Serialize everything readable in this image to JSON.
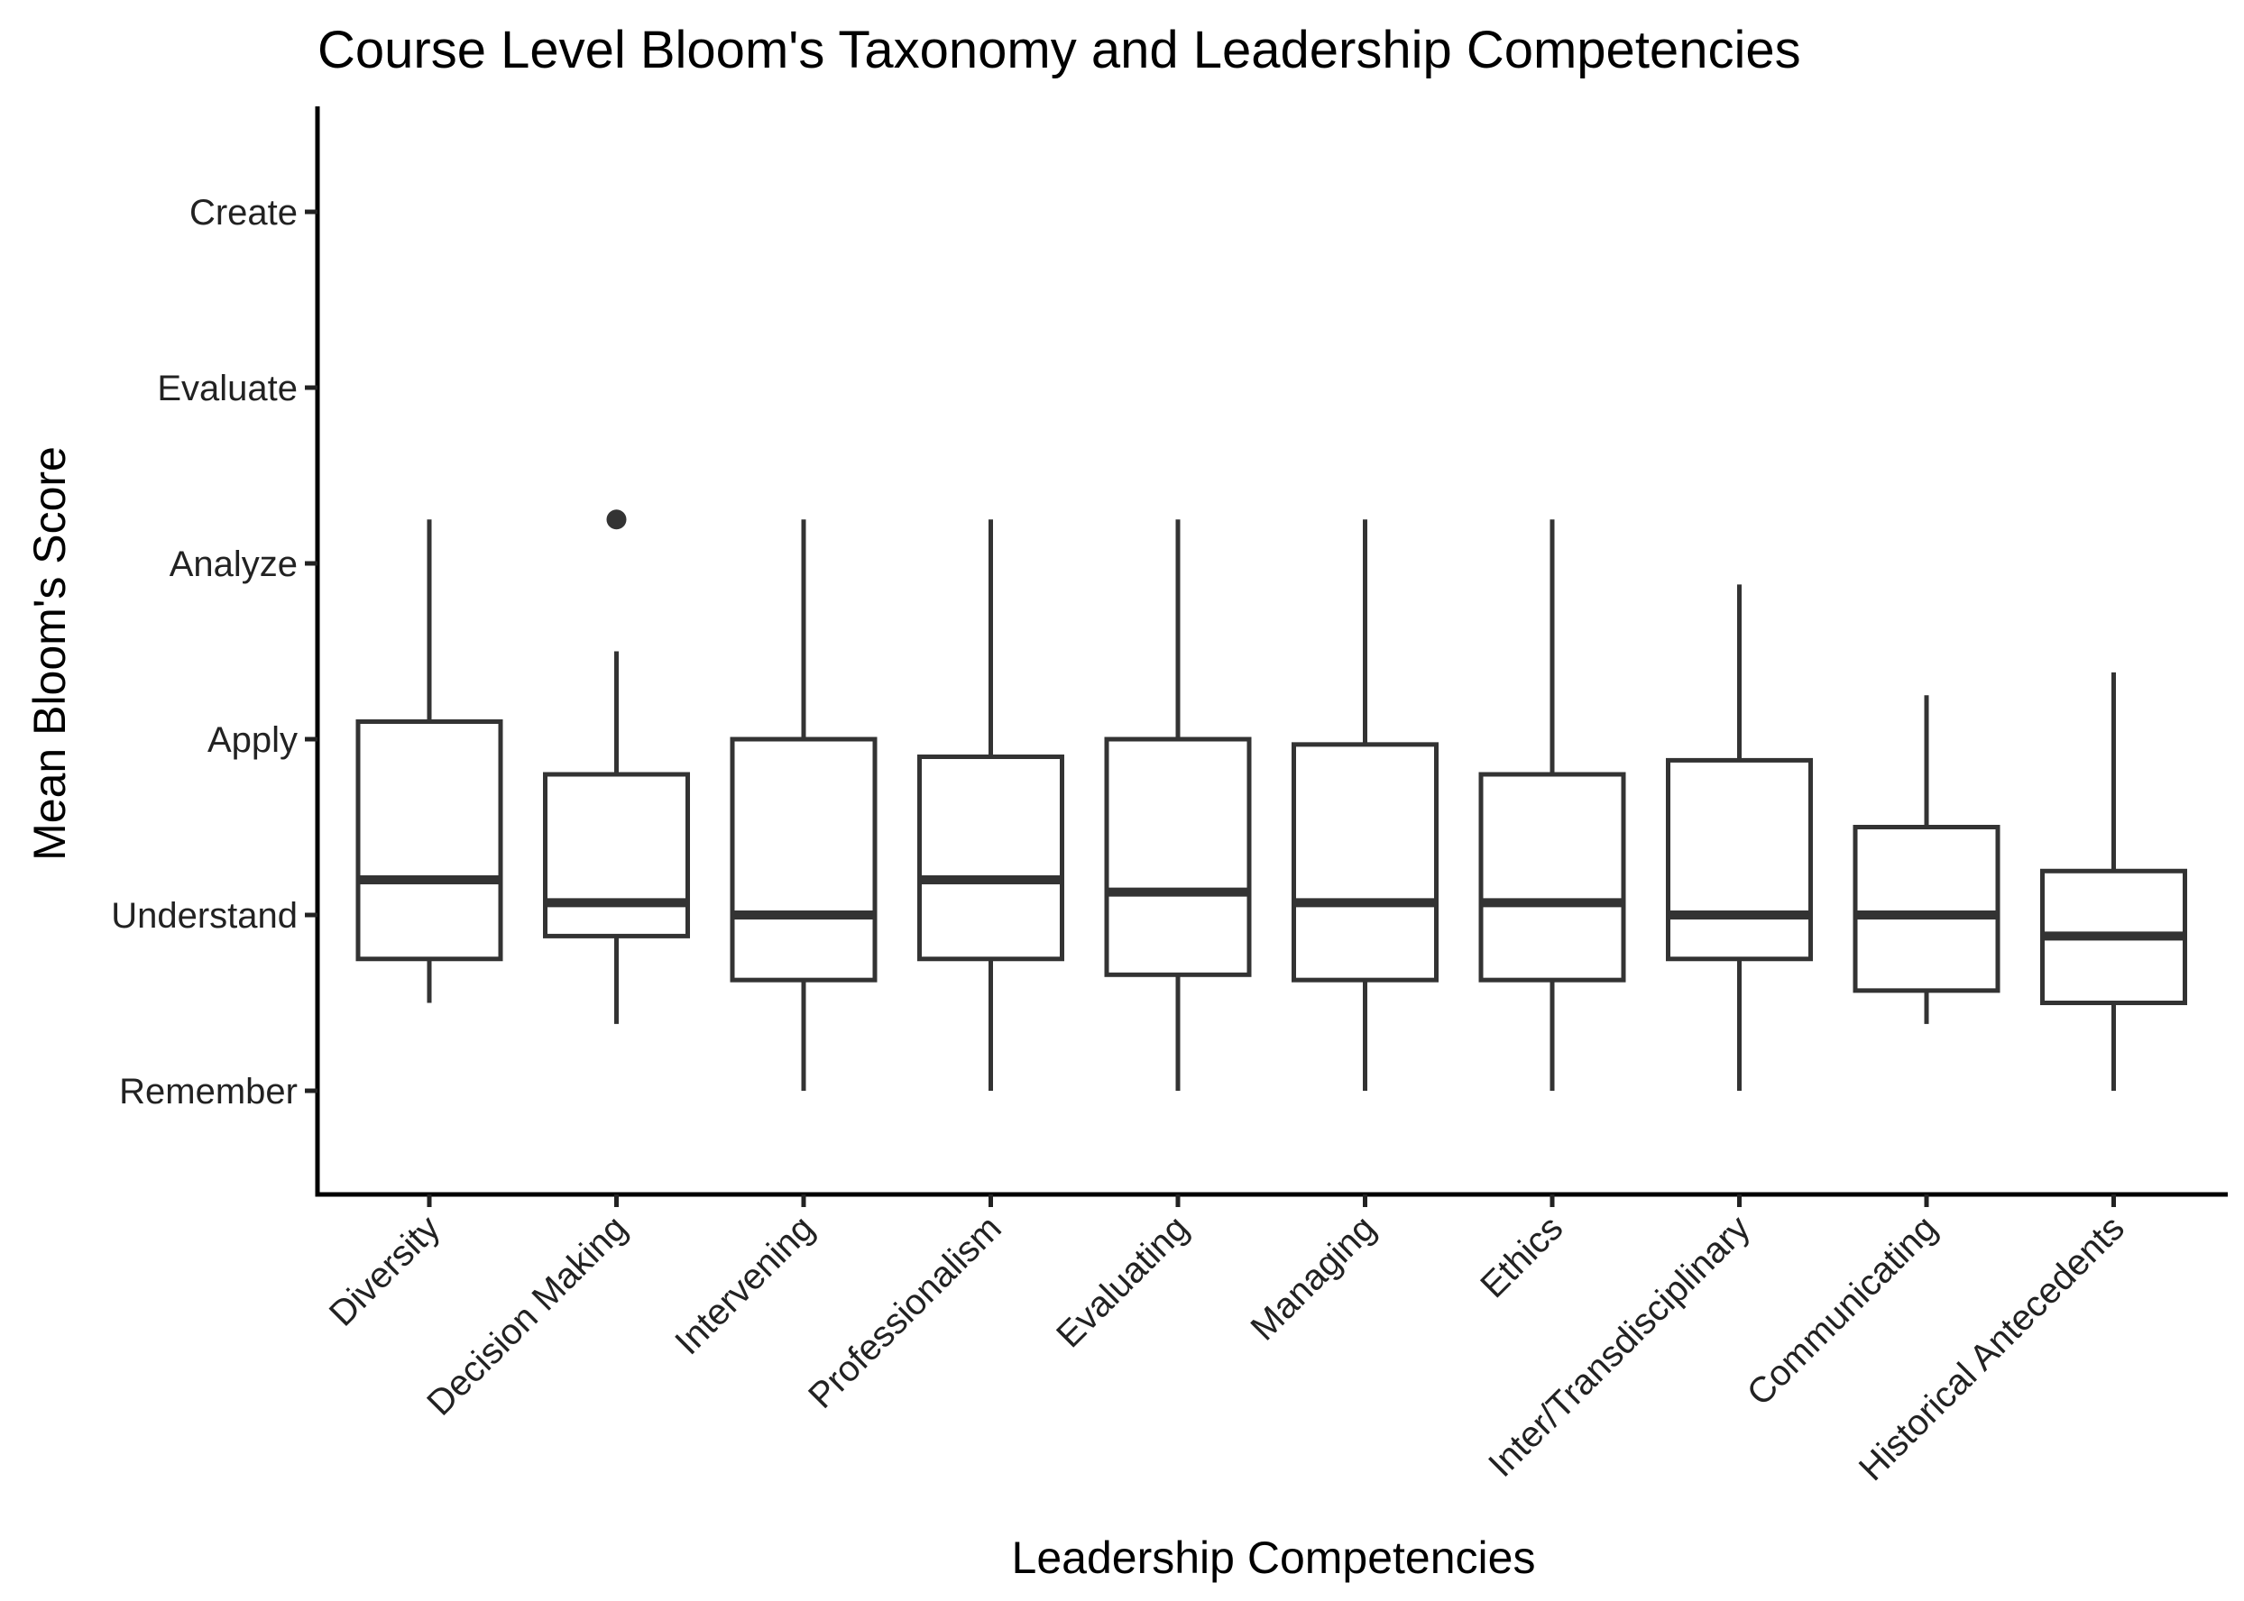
{
  "chart_data": {
    "type": "boxplot",
    "title": "Course Level Bloom's Taxonomy and Leadership Competencies",
    "xlabel": "Leadership Competencies",
    "ylabel": "Mean Bloom's Score",
    "ylim": [
      0.4,
      6.6
    ],
    "y_ticks": [
      {
        "value": 1,
        "label": "Remember"
      },
      {
        "value": 2,
        "label": "Understand"
      },
      {
        "value": 3,
        "label": "Apply"
      },
      {
        "value": 4,
        "label": "Analyze"
      },
      {
        "value": 5,
        "label": "Evaluate"
      },
      {
        "value": 6,
        "label": "Create"
      }
    ],
    "categories": [
      "Diversity",
      "Decision Making",
      "Intervening",
      "Professionalism",
      "Evaluating",
      "Managing",
      "Ethics",
      "Inter/Transdisciplinary",
      "Communicating",
      "Historical Antecedents"
    ],
    "boxes": [
      {
        "min": 1.5,
        "q1": 1.75,
        "median": 2.2,
        "q3": 3.1,
        "max": 4.25,
        "outliers": []
      },
      {
        "min": 1.38,
        "q1": 1.88,
        "median": 2.07,
        "q3": 2.8,
        "max": 3.5,
        "outliers": [
          4.25
        ]
      },
      {
        "min": 1.0,
        "q1": 1.63,
        "median": 2.0,
        "q3": 3.0,
        "max": 4.25,
        "outliers": []
      },
      {
        "min": 1.0,
        "q1": 1.75,
        "median": 2.2,
        "q3": 2.9,
        "max": 4.25,
        "outliers": []
      },
      {
        "min": 1.0,
        "q1": 1.66,
        "median": 2.13,
        "q3": 3.0,
        "max": 4.25,
        "outliers": []
      },
      {
        "min": 1.0,
        "q1": 1.63,
        "median": 2.07,
        "q3": 2.97,
        "max": 4.25,
        "outliers": []
      },
      {
        "min": 1.0,
        "q1": 1.63,
        "median": 2.07,
        "q3": 2.8,
        "max": 4.25,
        "outliers": []
      },
      {
        "min": 1.0,
        "q1": 1.75,
        "median": 2.0,
        "q3": 2.88,
        "max": 3.88,
        "outliers": []
      },
      {
        "min": 1.38,
        "q1": 1.57,
        "median": 2.0,
        "q3": 2.5,
        "max": 3.25,
        "outliers": []
      },
      {
        "min": 1.0,
        "q1": 1.5,
        "median": 1.88,
        "q3": 2.25,
        "max": 3.38,
        "outliers": []
      }
    ],
    "grid": false,
    "legend": "none"
  }
}
